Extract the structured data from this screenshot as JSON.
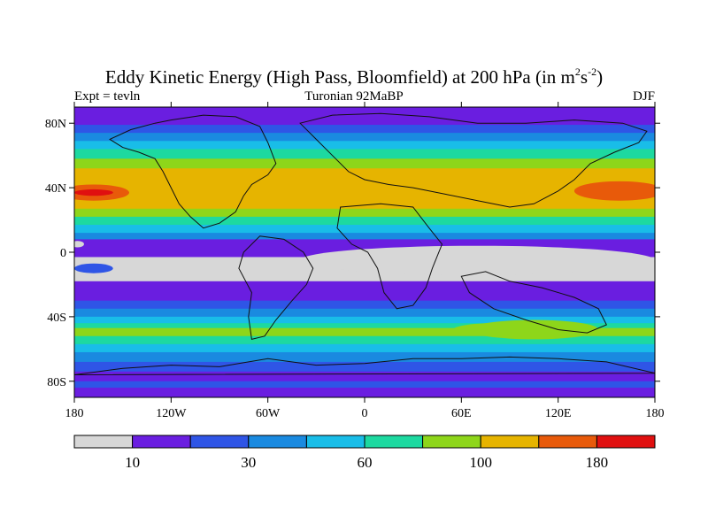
{
  "chart_data": {
    "type": "heatmap",
    "title": {
      "prefix": "Eddy Kinetic Energy (High Pass, Bloomfield) at 200 hPa (in m",
      "sup1": "2",
      "mid": "s",
      "sup2": "-2",
      "suffix": ")"
    },
    "subtitle_left": "Expt = tevln",
    "subtitle_center": "Turonian  92MaBP",
    "subtitle_right": "DJF",
    "x_range": [
      -180,
      180
    ],
    "y_range": [
      -90,
      90
    ],
    "x_ticks": [
      {
        "value": -180,
        "label": "180"
      },
      {
        "value": -120,
        "label": "120W"
      },
      {
        "value": -60,
        "label": "60W"
      },
      {
        "value": 0,
        "label": "0"
      },
      {
        "value": 60,
        "label": "60E"
      },
      {
        "value": 120,
        "label": "120E"
      },
      {
        "value": 180,
        "label": "180"
      }
    ],
    "y_ticks": [
      {
        "value": 80,
        "label": "80N"
      },
      {
        "value": 40,
        "label": "40N"
      },
      {
        "value": 0,
        "label": "0"
      },
      {
        "value": -40,
        "label": "40S"
      },
      {
        "value": -80,
        "label": "80S"
      }
    ],
    "colorbar": {
      "colors": [
        "#d7d7d7",
        "#6a1ee0",
        "#2f55e6",
        "#1a8ae0",
        "#19bde8",
        "#1dd9a0",
        "#8ed61a",
        "#e6b400",
        "#e85a0a",
        "#e01010"
      ],
      "bounds": [
        0,
        10,
        20,
        30,
        45,
        60,
        80,
        100,
        140,
        180,
        220
      ],
      "labels": [
        {
          "boundary_index": 1,
          "text": "10"
        },
        {
          "boundary_index": 3,
          "text": "30"
        },
        {
          "boundary_index": 5,
          "text": "60"
        },
        {
          "boundary_index": 7,
          "text": "100"
        },
        {
          "boundary_index": 9,
          "text": "180"
        }
      ]
    },
    "zonal_profile_dkj": [
      {
        "lat": 90,
        "level": 1
      },
      {
        "lat": 84,
        "level": 1
      },
      {
        "lat": 79,
        "level": 2
      },
      {
        "lat": 74,
        "level": 3
      },
      {
        "lat": 69,
        "level": 4
      },
      {
        "lat": 64,
        "level": 5
      },
      {
        "lat": 58,
        "level": 6
      },
      {
        "lat": 52,
        "level": 7
      },
      {
        "lat": 45,
        "level": 7
      },
      {
        "lat": 40,
        "level": 7
      },
      {
        "lat": 33,
        "level": 7
      },
      {
        "lat": 27,
        "level": 6
      },
      {
        "lat": 22,
        "level": 5
      },
      {
        "lat": 17,
        "level": 4
      },
      {
        "lat": 12,
        "level": 3
      },
      {
        "lat": 8,
        "level": 1
      },
      {
        "lat": 3,
        "level": 1
      },
      {
        "lat": -3,
        "level": 0
      },
      {
        "lat": -10,
        "level": 0
      },
      {
        "lat": -18,
        "level": 1
      },
      {
        "lat": -24,
        "level": 1
      },
      {
        "lat": -30,
        "level": 2
      },
      {
        "lat": -35,
        "level": 3
      },
      {
        "lat": -40,
        "level": 4
      },
      {
        "lat": -44,
        "level": 5
      },
      {
        "lat": -47,
        "level": 6
      },
      {
        "lat": -52,
        "level": 5
      },
      {
        "lat": -57,
        "level": 4
      },
      {
        "lat": -62,
        "level": 3
      },
      {
        "lat": -68,
        "level": 2
      },
      {
        "lat": -74,
        "level": 1
      },
      {
        "lat": -80,
        "level": 2
      },
      {
        "lat": -84,
        "level": 1
      },
      {
        "lat": -90,
        "level": 0
      }
    ],
    "features": [
      {
        "kind": "ellipse",
        "level": 8,
        "lon": 158,
        "lat": 38,
        "lon_r": 28,
        "lat_r": 6
      },
      {
        "kind": "ellipse",
        "level": 8,
        "lon": -168,
        "lat": 37,
        "lon_r": 22,
        "lat_r": 5
      },
      {
        "kind": "ellipse",
        "level": 9,
        "lon": -168,
        "lat": 37,
        "lon_r": 12,
        "lat_r": 2
      },
      {
        "kind": "ellipse",
        "level": 0,
        "lon": 70,
        "lat": -5,
        "lon_r": 110,
        "lat_r": 9
      },
      {
        "kind": "ellipse",
        "level": 0,
        "lon": -178,
        "lat": 5,
        "lon_r": 4,
        "lat_r": 2
      },
      {
        "kind": "ellipse",
        "level": 2,
        "lon": -168,
        "lat": -10,
        "lon_r": 12,
        "lat_r": 3
      },
      {
        "kind": "ellipse",
        "level": 6,
        "lon": 105,
        "lat": -48,
        "lon_r": 40,
        "lat_r": 6
      },
      {
        "kind": "ellipse",
        "level": 6,
        "lon": 80,
        "lat": -48,
        "lon_r": 25,
        "lat_r": 4
      }
    ],
    "continents": [
      {
        "name": "north-america",
        "points": [
          [
            -120,
            82
          ],
          [
            -100,
            85
          ],
          [
            -80,
            84
          ],
          [
            -65,
            78
          ],
          [
            -60,
            68
          ],
          [
            -55,
            55
          ],
          [
            -60,
            48
          ],
          [
            -70,
            42
          ],
          [
            -75,
            35
          ],
          [
            -80,
            25
          ],
          [
            -90,
            18
          ],
          [
            -100,
            15
          ],
          [
            -108,
            22
          ],
          [
            -115,
            30
          ],
          [
            -120,
            40
          ],
          [
            -125,
            50
          ],
          [
            -130,
            58
          ],
          [
            -140,
            62
          ],
          [
            -150,
            65
          ],
          [
            -158,
            70
          ],
          [
            -145,
            76
          ],
          [
            -130,
            80
          ]
        ]
      },
      {
        "name": "greenland-asia",
        "points": [
          [
            -40,
            80
          ],
          [
            -20,
            85
          ],
          [
            10,
            86
          ],
          [
            40,
            84
          ],
          [
            70,
            80
          ],
          [
            100,
            80
          ],
          [
            130,
            82
          ],
          [
            160,
            80
          ],
          [
            175,
            75
          ],
          [
            170,
            68
          ],
          [
            155,
            62
          ],
          [
            140,
            55
          ],
          [
            130,
            45
          ],
          [
            120,
            38
          ],
          [
            105,
            30
          ],
          [
            90,
            28
          ],
          [
            70,
            32
          ],
          [
            50,
            36
          ],
          [
            30,
            40
          ],
          [
            15,
            42
          ],
          [
            0,
            45
          ],
          [
            -10,
            50
          ],
          [
            -20,
            60
          ],
          [
            -30,
            70
          ]
        ]
      },
      {
        "name": "south-america",
        "points": [
          [
            -65,
            10
          ],
          [
            -50,
            8
          ],
          [
            -38,
            0
          ],
          [
            -32,
            -10
          ],
          [
            -36,
            -20
          ],
          [
            -45,
            -30
          ],
          [
            -55,
            -42
          ],
          [
            -62,
            -52
          ],
          [
            -70,
            -54
          ],
          [
            -72,
            -40
          ],
          [
            -70,
            -25
          ],
          [
            -78,
            -10
          ],
          [
            -75,
            0
          ]
        ]
      },
      {
        "name": "africa",
        "points": [
          [
            -15,
            28
          ],
          [
            10,
            30
          ],
          [
            30,
            28
          ],
          [
            40,
            15
          ],
          [
            48,
            5
          ],
          [
            42,
            -10
          ],
          [
            38,
            -22
          ],
          [
            30,
            -33
          ],
          [
            20,
            -35
          ],
          [
            12,
            -25
          ],
          [
            8,
            -10
          ],
          [
            2,
            0
          ],
          [
            -8,
            5
          ],
          [
            -17,
            15
          ]
        ]
      },
      {
        "name": "india-australia",
        "points": [
          [
            60,
            -15
          ],
          [
            75,
            -12
          ],
          [
            90,
            -18
          ],
          [
            110,
            -22
          ],
          [
            130,
            -28
          ],
          [
            145,
            -35
          ],
          [
            150,
            -45
          ],
          [
            138,
            -50
          ],
          [
            120,
            -48
          ],
          [
            100,
            -42
          ],
          [
            80,
            -35
          ],
          [
            65,
            -25
          ]
        ]
      },
      {
        "name": "antarctica",
        "points": [
          [
            -180,
            -76
          ],
          [
            -150,
            -72
          ],
          [
            -120,
            -70
          ],
          [
            -90,
            -71
          ],
          [
            -60,
            -66
          ],
          [
            -30,
            -70
          ],
          [
            0,
            -69
          ],
          [
            30,
            -66
          ],
          [
            60,
            -66
          ],
          [
            90,
            -65
          ],
          [
            120,
            -66
          ],
          [
            150,
            -68
          ],
          [
            180,
            -75
          ]
        ]
      }
    ]
  }
}
